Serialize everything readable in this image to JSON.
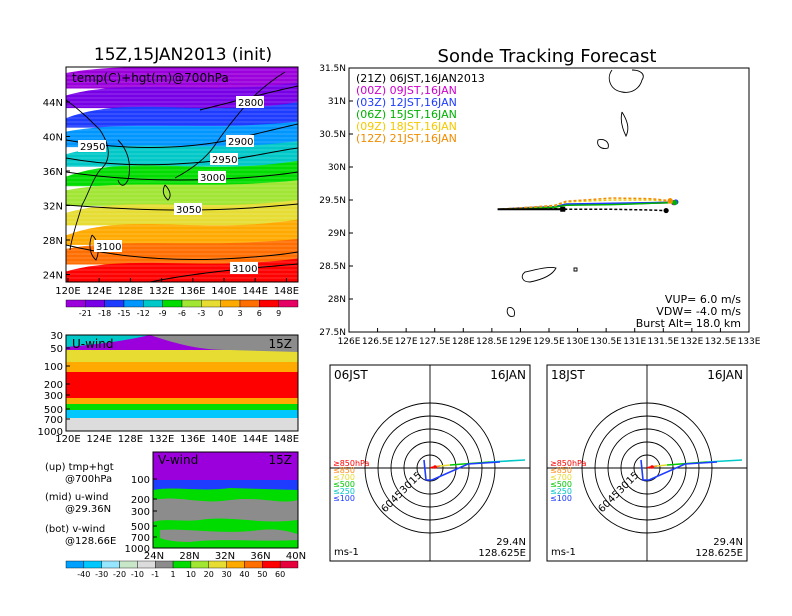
{
  "colors": {
    "vup_line_00z": "#cc00cc",
    "line_03z": "#1e3cff",
    "line_06z": "#00b000",
    "line_09z": "#f5c800",
    "line_12z": "#f08c00",
    "line_21z": "#000000",
    "height_band": "#ff8c1a",
    "uwind_gray": "#8c8c8c"
  },
  "left": {
    "map": {
      "title": "15Z,15JAN2013 (init)",
      "label": "temp(C)+hgt(m)@700hPa",
      "lat_ticks": [
        "44N",
        "40N",
        "36N",
        "32N",
        "28N",
        "24N"
      ],
      "lon_ticks": [
        "120E",
        "124E",
        "128E",
        "132E",
        "136E",
        "140E",
        "144E",
        "148E"
      ],
      "contour_labels": [
        "2800",
        "2950",
        "2900",
        "2950",
        "3000",
        "3050",
        "3100",
        "3100"
      ],
      "colorbar": {
        "labels": [
          "-21",
          "-18",
          "-15",
          "-12",
          "-9",
          "-6",
          "-3",
          "0",
          "3",
          "6",
          "9"
        ],
        "colors": [
          "#9b00dc",
          "#7800e6",
          "#1e3cff",
          "#0096ff",
          "#00c8c8",
          "#00dc00",
          "#a0e632",
          "#e6dc32",
          "#ffaa00",
          "#ff6e00",
          "#ff0000",
          "#e60064"
        ]
      }
    },
    "uwind": {
      "label": "U-wind",
      "time": "15Z",
      "y_ticks": [
        "30",
        "50",
        "100",
        "200",
        "300",
        "500",
        "700",
        "1000"
      ],
      "x_ticks": [
        "120E",
        "124E",
        "128E",
        "132E",
        "136E",
        "140E",
        "144E",
        "148E"
      ]
    },
    "vwind": {
      "label": "V-wind",
      "time": "15Z",
      "y_ticks": [
        "100",
        "200",
        "300",
        "500",
        "700",
        "1000"
      ],
      "x_ticks": [
        "24N",
        "28N",
        "32N",
        "36N",
        "40N"
      ],
      "colorbar": {
        "labels": [
          "-40",
          "-30",
          "-20",
          "-10",
          "-1",
          "1",
          "10",
          "20",
          "30",
          "40",
          "50",
          "60"
        ],
        "colors": [
          "#00a0ff",
          "#00c8ff",
          "#96e6ff",
          "#c8e6c8",
          "#dcdcdc",
          "#8c8c8c",
          "#00dc00",
          "#a0e632",
          "#e6dc32",
          "#ffaa00",
          "#ff6e00",
          "#ff0000",
          "#e6003c"
        ]
      }
    },
    "legend_notes": [
      {
        "line1": "(up) tmp+hgt",
        "line2": "@700hPa"
      },
      {
        "line1": "(mid) u-wind",
        "line2": "@29.36N"
      },
      {
        "line1": "(bot) v-wind",
        "line2": "@128.66E"
      }
    ]
  },
  "main": {
    "title": "Sonde Tracking Forecast",
    "chart_data": [
      {
        "type": "line",
        "x_ticks": [
          "126E",
          "126.5E",
          "127E",
          "127.5E",
          "128E",
          "128.5E",
          "129E",
          "129.5E",
          "130E",
          "130.5E",
          "131E",
          "131.5E",
          "132E",
          "132.5E",
          "133E"
        ],
        "y_ticks": [
          "31.5N",
          "31N",
          "30.5N",
          "30N",
          "29.5N",
          "29N",
          "28.5N",
          "28N",
          "27.5N"
        ],
        "xlim": [
          126,
          133
        ],
        "ylim": [
          27.5,
          31.5
        ],
        "legend": [
          {
            "label": "(21Z)  06JST,16JAN2013",
            "color": "#000000"
          },
          {
            "label": "(00Z)  09JST,16JAN",
            "color": "#cc00cc"
          },
          {
            "label": "(03Z)  12JST,16JAN",
            "color": "#1e3cff"
          },
          {
            "label": "(06Z)  15JST,16JAN",
            "color": "#00b000"
          },
          {
            "label": "(09Z)  18JST,16JAN",
            "color": "#f5c800"
          },
          {
            "label": "(12Z)  21JST,16JAN",
            "color": "#f08c00"
          }
        ],
        "series": [
          {
            "name": "(21Z)  06JST,16JAN2013",
            "color": "#000000",
            "x": [
              128.63,
              129.0,
              129.6,
              129.8,
              130.5,
              131.2,
              131.55
            ],
            "y": [
              29.36,
              29.36,
              29.37,
              29.36,
              29.36,
              29.35,
              29.34
            ],
            "end": [
              131.55,
              29.34
            ]
          },
          {
            "name": "(00Z)  09JST,16JAN",
            "color": "#cc00cc",
            "x": [
              128.63,
              129.0,
              129.6,
              129.8,
              130.6,
              131.3,
              131.68
            ],
            "y": [
              29.36,
              29.37,
              29.4,
              29.43,
              29.44,
              29.45,
              29.46
            ],
            "end": [
              131.68,
              29.46
            ]
          },
          {
            "name": "(03Z)  12JST,16JAN",
            "color": "#1e3cff",
            "x": [
              128.63,
              129.0,
              129.6,
              129.8,
              130.6,
              131.3,
              131.72
            ],
            "y": [
              29.36,
              29.38,
              29.4,
              29.44,
              29.45,
              29.46,
              29.47
            ],
            "end": [
              131.72,
              29.47
            ]
          },
          {
            "name": "(06Z)  15JST,16JAN",
            "color": "#00b000",
            "x": [
              128.63,
              129.0,
              129.6,
              129.8,
              130.6,
              131.3,
              131.7
            ],
            "y": [
              29.36,
              29.37,
              29.39,
              29.42,
              29.43,
              29.45,
              29.46
            ],
            "end": [
              131.7,
              29.46
            ]
          },
          {
            "name": "(09Z)  18JST,16JAN",
            "color": "#f5c800",
            "x": [
              128.63,
              129.0,
              129.6,
              129.8,
              130.6,
              131.3,
              131.62
            ],
            "y": [
              29.36,
              29.38,
              29.41,
              29.47,
              29.5,
              29.5,
              29.48
            ],
            "end": [
              131.62,
              29.48
            ]
          },
          {
            "name": "(12Z)  21JST,16JAN",
            "color": "#f08c00",
            "x": [
              128.63,
              129.0,
              129.6,
              129.8,
              130.6,
              131.3,
              131.62
            ],
            "y": [
              29.36,
              29.38,
              29.42,
              29.48,
              29.53,
              29.52,
              29.49
            ],
            "end": [
              131.62,
              29.49
            ]
          }
        ],
        "info": {
          "vup": "VUP=  6.0  m/s",
          "vdw": "VDW= -4.0  m/s",
          "burst": "Burst Alt=  18.0  km"
        }
      },
      {
        "type": "scatter",
        "panel": "hodograph",
        "time_left": "06JST",
        "time_right": "16JAN",
        "rings": [
          "15",
          "30",
          "45",
          "60"
        ],
        "units": "ms-1",
        "loc_lat": "29.4N",
        "loc_lon": "128.625E",
        "levels": [
          {
            "label": "≥850hPa",
            "color": "#ff0000"
          },
          {
            "label": "≤850",
            "color": "#ff8c1a"
          },
          {
            "label": "≤700",
            "color": "#e6dc32"
          },
          {
            "label": "≤500",
            "color": "#00c800"
          },
          {
            "label": "≤250",
            "color": "#00c8c8"
          },
          {
            "label": "≤100",
            "color": "#1e3cff"
          }
        ]
      },
      {
        "type": "scatter",
        "panel": "hodograph",
        "time_left": "18JST",
        "time_right": "16JAN",
        "rings": [
          "15",
          "30",
          "45",
          "60"
        ],
        "units": "ms-1",
        "loc_lat": "29.4N",
        "loc_lon": "128.625E",
        "levels": [
          {
            "label": "≥850hPa",
            "color": "#ff0000"
          },
          {
            "label": "≤850",
            "color": "#ff8c1a"
          },
          {
            "label": "≤700",
            "color": "#e6dc32"
          },
          {
            "label": "≤500",
            "color": "#00c800"
          },
          {
            "label": "≤250",
            "color": "#00c8c8"
          },
          {
            "label": "≤100",
            "color": "#1e3cff"
          }
        ]
      }
    ]
  }
}
